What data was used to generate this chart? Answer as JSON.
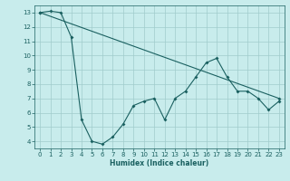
{
  "xlabel": "Humidex (Indice chaleur)",
  "bg_color": "#c8ecec",
  "grid_color": "#a0cccc",
  "line_color": "#1a6060",
  "xlim": [
    -0.5,
    23.5
  ],
  "ylim": [
    3.5,
    13.5
  ],
  "xticks": [
    0,
    1,
    2,
    3,
    4,
    5,
    6,
    7,
    8,
    9,
    10,
    11,
    12,
    13,
    14,
    15,
    16,
    17,
    18,
    19,
    20,
    21,
    22,
    23
  ],
  "yticks": [
    4,
    5,
    6,
    7,
    8,
    9,
    10,
    11,
    12,
    13
  ],
  "line1_x": [
    0,
    23
  ],
  "line1_y": [
    13.0,
    7.0
  ],
  "line2_x": [
    0,
    1,
    2,
    3,
    4,
    5,
    6,
    7,
    8,
    9,
    10,
    11,
    12,
    13,
    14,
    15,
    16,
    17,
    18,
    19,
    20,
    21,
    22,
    23
  ],
  "line2_y": [
    13.0,
    13.1,
    13.0,
    11.3,
    5.5,
    4.0,
    3.8,
    4.3,
    5.2,
    6.5,
    6.8,
    7.0,
    5.5,
    7.0,
    7.5,
    8.5,
    9.5,
    9.8,
    8.5,
    7.5,
    7.5,
    7.0,
    6.2,
    6.8
  ],
  "xlabel_fontsize": 5.5,
  "tick_fontsize": 5,
  "marker_size": 2.0,
  "linewidth": 0.8
}
